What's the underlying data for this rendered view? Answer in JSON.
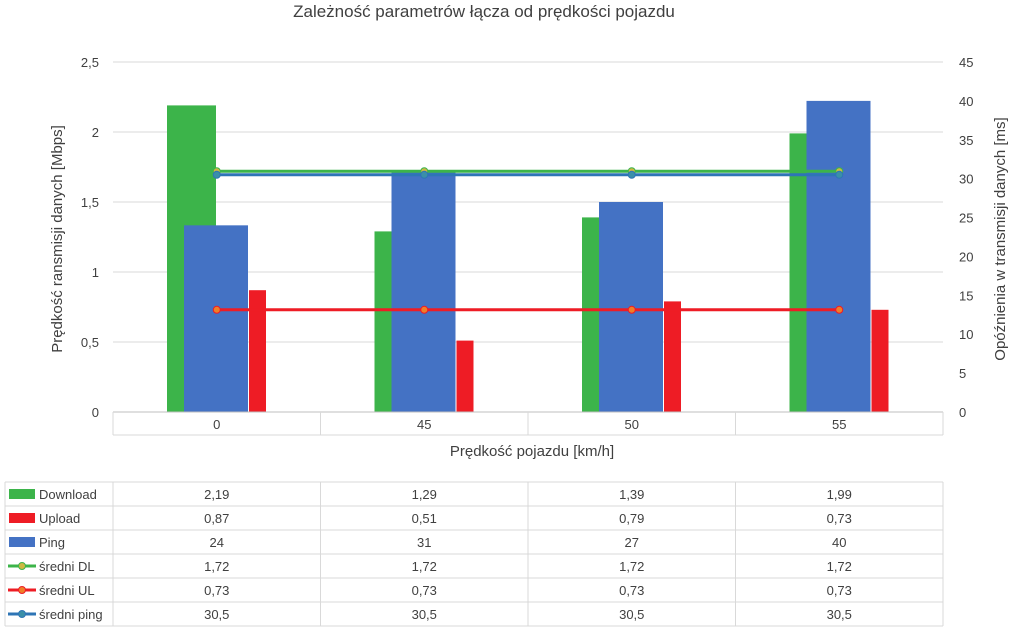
{
  "chart_data": {
    "type": "bar",
    "title": "Zależność parametrów łącza od prędkości pojazdu",
    "xlabel": "Prędkość pojazdu [km/h]",
    "ylabel": "Prędkość ransmisji danych [Mbps]",
    "y2label": "Opóźnienia w transmisji danych [ms]",
    "categories": [
      "0",
      "45",
      "50",
      "55"
    ],
    "ylim": [
      0,
      2.5
    ],
    "y2lim": [
      0,
      45
    ],
    "yticks": [
      "0",
      "0,5",
      "1",
      "1,5",
      "2",
      "2,5"
    ],
    "yticks_values": [
      0,
      0.5,
      1,
      1.5,
      2,
      2.5
    ],
    "y2ticks": [
      "0",
      "5",
      "10",
      "15",
      "20",
      "25",
      "30",
      "35",
      "40",
      "45"
    ],
    "y2ticks_values": [
      0,
      5,
      10,
      15,
      20,
      25,
      30,
      35,
      40,
      45
    ],
    "series": [
      {
        "name": "Download",
        "kind": "bar",
        "axis": "left",
        "color": "#3cb44a",
        "values": [
          2.19,
          1.29,
          1.39,
          1.99
        ],
        "labels": [
          "2,19",
          "1,29",
          "1,39",
          "1,99"
        ]
      },
      {
        "name": "Upload",
        "kind": "bar",
        "axis": "left",
        "color": "#ee1c25",
        "values": [
          0.87,
          0.51,
          0.79,
          0.73
        ],
        "labels": [
          "0,87",
          "0,51",
          "0,79",
          "0,73"
        ]
      },
      {
        "name": "Ping",
        "kind": "bar",
        "axis": "right",
        "color": "#4472c4",
        "values": [
          24,
          31,
          27,
          40
        ],
        "labels": [
          "24",
          "31",
          "27",
          "40"
        ]
      },
      {
        "name": "średni DL",
        "kind": "line",
        "axis": "left",
        "color": "#3cb44a",
        "marker": "#cdb842",
        "values": [
          1.72,
          1.72,
          1.72,
          1.72
        ],
        "labels": [
          "1,72",
          "1,72",
          "1,72",
          "1,72"
        ]
      },
      {
        "name": "średni UL",
        "kind": "line",
        "axis": "left",
        "color": "#ee1c25",
        "marker": "#f07f28",
        "values": [
          0.73,
          0.73,
          0.73,
          0.73
        ],
        "labels": [
          "0,73",
          "0,73",
          "0,73",
          "0,73"
        ]
      },
      {
        "name": "średni ping",
        "kind": "line",
        "axis": "right",
        "color": "#2e75b6",
        "marker": "#3a8fa8",
        "values": [
          30.5,
          30.5,
          30.5,
          30.5
        ],
        "labels": [
          "30,5",
          "30,5",
          "30,5",
          "30,5"
        ]
      }
    ]
  }
}
